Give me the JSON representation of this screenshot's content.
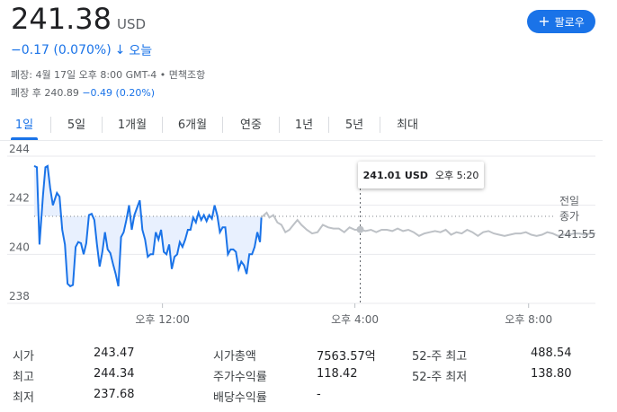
{
  "header": {
    "price": "241.38",
    "currency": "USD",
    "change": "−0.17 (0.070%)",
    "change_direction_icon": "arrow-down-icon",
    "period": "오늘",
    "close_info": "폐장: 4월 17일 오후 8:00 GMT-4 • 면책조항",
    "after_hours_label": "폐장 후 240.89",
    "after_hours_change": "−0.49 (0.20%)",
    "follow_label": "팔로우",
    "follow_icon": "plus-icon"
  },
  "tabs": [
    {
      "label": "1일",
      "active": true
    },
    {
      "label": "5일"
    },
    {
      "label": "1개월"
    },
    {
      "label": "6개월"
    },
    {
      "label": "연중"
    },
    {
      "label": "1년"
    },
    {
      "label": "5년"
    },
    {
      "label": "최대"
    }
  ],
  "tooltip": {
    "value": "241.01 USD",
    "time": "오후 5:20"
  },
  "prev_close": {
    "label_line1": "전일",
    "label_line2": "종가",
    "value": "241.55"
  },
  "chart_data": {
    "type": "line",
    "y_ticks": [
      "244",
      "242",
      "240",
      "238"
    ],
    "x_ticks": [
      "오후 12:00",
      "오후 4:00",
      "오후 8:00"
    ],
    "ylim": [
      238,
      244
    ],
    "x_unit": "hours since 9:30 ET",
    "prev_close": 241.55,
    "series": [
      {
        "segment": "regular",
        "color": "#1a73e8",
        "x": [
          0,
          0.1,
          0.2,
          0.33,
          0.42,
          0.5,
          0.6,
          0.7,
          0.85,
          0.95,
          1.05,
          1.15,
          1.25,
          1.35,
          1.45,
          1.55,
          1.65,
          1.75,
          1.85,
          1.95,
          2.05,
          2.15,
          2.25,
          2.35,
          2.45,
          2.55,
          2.65,
          2.75,
          2.85,
          2.95,
          3.05,
          3.15,
          3.25,
          3.35,
          3.45,
          3.55,
          3.65,
          3.75,
          3.85,
          3.95,
          4.05,
          4.15,
          4.25,
          4.35,
          4.45,
          4.55,
          4.65,
          4.75,
          4.85,
          4.95,
          5.05,
          5.15,
          5.25,
          5.35,
          5.45,
          5.55,
          5.65,
          5.75,
          5.85,
          5.95,
          6.05,
          6.15,
          6.25,
          6.35,
          6.45,
          6.55,
          6.65,
          6.75,
          6.85,
          6.95,
          7.05,
          7.15,
          7.25,
          7.35,
          7.45,
          7.55,
          7.65,
          7.75,
          7.85,
          7.95,
          8.05,
          8.15,
          8.25,
          8.35,
          8.45,
          8.5
        ],
        "values": [
          243.6,
          243.55,
          240.4,
          242.4,
          243.55,
          243.6,
          242.7,
          242.0,
          242.5,
          242.35,
          241.0,
          240.4,
          238.8,
          238.7,
          238.75,
          240.3,
          240.5,
          240.45,
          240.0,
          240.45,
          241.6,
          241.65,
          241.4,
          240.4,
          239.5,
          240.1,
          240.9,
          240.2,
          240.05,
          239.6,
          239.2,
          238.7,
          240.7,
          240.9,
          241.4,
          242.0,
          241.0,
          241.6,
          241.9,
          242.2,
          241.0,
          240.6,
          239.9,
          240.0,
          240.0,
          240.9,
          240.6,
          241.0,
          240.1,
          240.0,
          240.4,
          239.4,
          239.9,
          240.0,
          240.5,
          240.3,
          240.6,
          241.0,
          241.0,
          241.5,
          241.3,
          241.7,
          241.4,
          241.6,
          241.35,
          241.6,
          241.45,
          242.0,
          241.6,
          240.9,
          241.1,
          241.1,
          240.0,
          240.2,
          240.2,
          240.1,
          239.4,
          239.7,
          239.55,
          239.2,
          240.0,
          240.0,
          240.3,
          240.9,
          240.5,
          241.5
        ]
      },
      {
        "segment": "after-hours",
        "color": "#bdc1c6",
        "x": [
          8.5,
          8.6,
          8.7,
          8.8,
          8.95,
          9.1,
          9.25,
          9.4,
          9.55,
          9.7,
          9.85,
          10.0,
          10.2,
          10.4,
          10.6,
          10.8,
          11.0,
          11.2,
          11.4,
          11.6,
          11.8,
          12.0,
          12.2,
          12.4,
          12.6,
          12.8,
          13.0,
          13.2,
          13.4,
          13.6,
          13.8,
          14.0,
          14.2,
          14.4,
          14.6,
          14.8,
          15.0,
          15.2,
          15.4,
          15.6,
          15.8,
          16.0,
          16.2,
          16.4,
          16.6,
          16.8,
          17.0,
          17.2,
          17.4,
          17.6,
          17.8,
          18.0,
          18.2,
          18.4,
          18.6,
          18.8,
          19.0,
          19.2,
          19.4,
          19.6,
          19.8,
          20.0,
          20.2,
          20.4,
          20.6,
          20.8,
          21.0
        ],
        "values": [
          241.5,
          241.6,
          241.7,
          241.5,
          241.6,
          241.3,
          241.2,
          240.9,
          241.0,
          241.2,
          241.4,
          241.2,
          241.0,
          240.85,
          240.9,
          241.2,
          241.1,
          241.05,
          241.05,
          240.9,
          241.1,
          241.0,
          241.0,
          240.95,
          241.0,
          240.9,
          241.0,
          241.0,
          240.95,
          241.05,
          240.95,
          241.0,
          240.9,
          240.75,
          240.85,
          240.9,
          240.95,
          240.9,
          241.0,
          240.8,
          240.9,
          240.85,
          241.0,
          240.9,
          240.75,
          240.9,
          240.95,
          240.85,
          240.8,
          240.75,
          240.8,
          240.85,
          240.85,
          240.9,
          240.8,
          240.75,
          240.8,
          240.9,
          240.85,
          240.75,
          240.8,
          240.8,
          240.85,
          240.85,
          240.8,
          240.85,
          240.85
        ]
      }
    ],
    "cursor_x": 12.2,
    "cursor_value": 241.01
  },
  "stats": [
    {
      "label": "시가",
      "value": "243.47"
    },
    {
      "label": "최고",
      "value": "244.34"
    },
    {
      "label": "최저",
      "value": "237.68"
    },
    {
      "label": "시가총액",
      "value": "7563.57억"
    },
    {
      "label": "주가수익률",
      "value": "118.42"
    },
    {
      "label": "배당수익률",
      "value": "-"
    },
    {
      "label": "52-주 최고",
      "value": "488.54"
    },
    {
      "label": "52-주 최저",
      "value": "138.80"
    }
  ],
  "colors": {
    "accent": "#1a73e8",
    "after_hours": "#bdc1c6",
    "fill": "#e8f0fe"
  }
}
